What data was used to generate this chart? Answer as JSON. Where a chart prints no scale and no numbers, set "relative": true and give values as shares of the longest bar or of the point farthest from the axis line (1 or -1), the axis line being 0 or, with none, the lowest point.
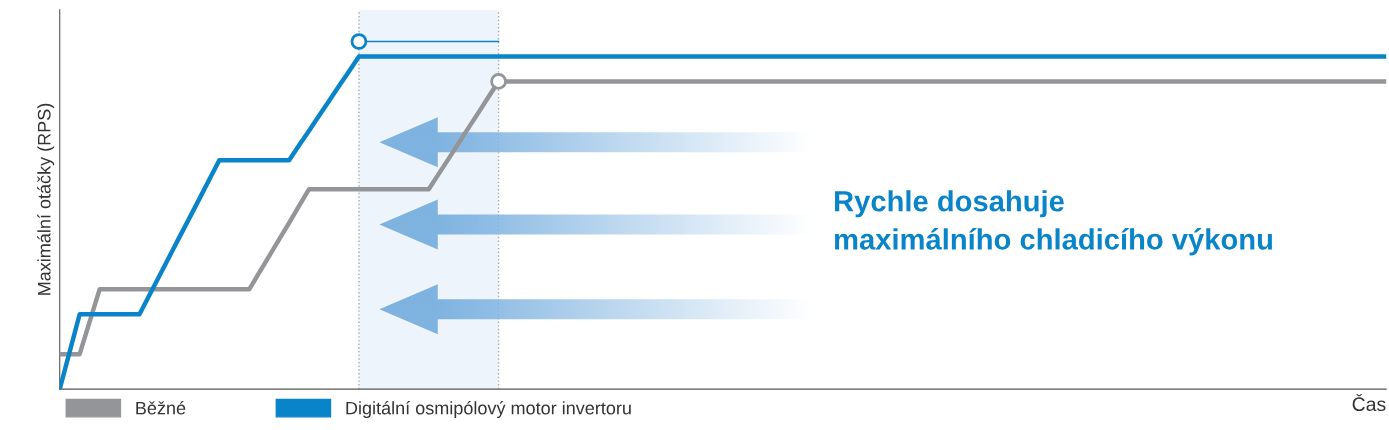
{
  "chart_data": {
    "type": "line",
    "relative": true,
    "ylabel": "Maximální otáčky (RPS)",
    "xlabel": "Čas",
    "legend": "bottom left",
    "marker": "none",
    "line_style": "solid",
    "categories": [
      null,
      null,
      null,
      null,
      null,
      null,
      null,
      null,
      null,
      null,
      null,
      null,
      null,
      null,
      null,
      null,
      null,
      null,
      null,
      null,
      null,
      null,
      null,
      null,
      null,
      null,
      null,
      null,
      null,
      null,
      null,
      null,
      null,
      null,
      null,
      null,
      null,
      null,
      null,
      null,
      null,
      null,
      null,
      null,
      null,
      null,
      null,
      null,
      null,
      null,
      null,
      null,
      null,
      null,
      null,
      null,
      null,
      null,
      null,
      null,
      null,
      null,
      null,
      null,
      null,
      null,
      null,
      null,
      null,
      null,
      null,
      null,
      null,
      null,
      null,
      null,
      null,
      null,
      null,
      null,
      null,
      null,
      null,
      null,
      null,
      null,
      null,
      null,
      null,
      null,
      null,
      null,
      null,
      null,
      null,
      null,
      null,
      null,
      null,
      null,
      null,
      null,
      null,
      null,
      null,
      null,
      null,
      null,
      null,
      null,
      null,
      null,
      null,
      null,
      null,
      null,
      null,
      null,
      null,
      null,
      null,
      null,
      null,
      null,
      null,
      null,
      null,
      null,
      null,
      null,
      null,
      null,
      null,
      null
    ],
    "series": [
      {
        "name": "Běžné",
        "color": "#939598",
        "values": [
          0.105,
          0.105,
          0.105,
          0.203,
          0.3,
          0.3,
          0.3,
          0.3,
          0.3,
          0.3,
          0.3,
          0.3,
          0.3,
          0.3,
          0.3,
          0.3,
          0.3,
          0.3,
          0.3,
          0.3,
          0.35,
          0.4,
          0.45,
          0.5,
          0.551,
          0.601,
          0.601,
          0.601,
          0.601,
          0.601,
          0.601,
          0.601,
          0.601,
          0.601,
          0.601,
          0.601,
          0.601,
          0.601,
          0.647,
          0.693,
          0.74,
          0.786,
          0.832,
          0.879,
          0.925,
          0.925,
          0.925,
          0.925,
          0.925,
          0.925,
          0.925,
          0.925,
          0.925,
          0.925,
          0.925,
          0.925,
          0.925,
          0.925,
          0.925,
          0.925,
          0.925,
          0.925,
          0.925,
          0.925,
          0.925,
          0.925,
          0.925,
          0.925,
          0.925,
          0.925,
          0.925,
          0.925,
          0.925,
          0.925,
          0.925,
          0.925,
          0.925,
          0.925,
          0.925,
          0.925,
          0.925,
          0.925,
          0.925,
          0.925,
          0.925,
          0.925,
          0.925,
          0.925,
          0.925,
          0.925,
          0.925,
          0.925,
          0.925,
          0.925,
          0.925,
          0.925,
          0.925,
          0.925,
          0.925,
          0.925,
          0.925,
          0.925,
          0.925,
          0.925,
          0.925,
          0.925,
          0.925,
          0.925,
          0.925,
          0.925,
          0.925,
          0.925,
          0.925,
          0.925,
          0.925,
          0.925,
          0.925,
          0.925,
          0.925,
          0.925,
          0.925,
          0.925,
          0.925,
          0.925,
          0.925,
          0.925,
          0.925,
          0.925,
          0.925,
          0.925,
          0.925,
          0.925,
          0.925,
          0.925
        ]
      },
      {
        "name": "Digitální osmipólový motor invertoru",
        "color": "#0a84c9",
        "values": [
          0,
          0.113,
          0.225,
          0.225,
          0.225,
          0.225,
          0.225,
          0.225,
          0.225,
          0.283,
          0.341,
          0.399,
          0.457,
          0.514,
          0.572,
          0.63,
          0.688,
          0.688,
          0.688,
          0.688,
          0.688,
          0.688,
          0.688,
          0.688,
          0.733,
          0.777,
          0.822,
          0.866,
          0.911,
          0.955,
          1,
          1,
          1,
          1,
          1,
          1,
          1,
          1,
          1,
          1,
          1,
          1,
          1,
          1,
          1,
          1,
          1,
          1,
          1,
          1,
          1,
          1,
          1,
          1,
          1,
          1,
          1,
          1,
          1,
          1,
          1,
          1,
          1,
          1,
          1,
          1,
          1,
          1,
          1,
          1,
          1,
          1,
          1,
          1,
          1,
          1,
          1,
          1,
          1,
          1,
          1,
          1,
          1,
          1,
          1,
          1,
          1,
          1,
          1,
          1,
          1,
          1,
          1,
          1,
          1,
          1,
          1,
          1,
          1,
          1,
          1,
          1,
          1,
          1,
          1,
          1,
          1,
          1,
          1,
          1,
          1,
          1,
          1,
          1,
          1,
          1,
          1,
          1,
          1,
          1,
          1,
          1,
          1,
          1,
          1,
          1,
          1,
          1,
          1,
          1,
          1,
          1,
          1,
          1
        ]
      }
    ],
    "annotations": [
      "Rychle dosahuje\nmaximálního chladicího výkonu"
    ]
  }
}
